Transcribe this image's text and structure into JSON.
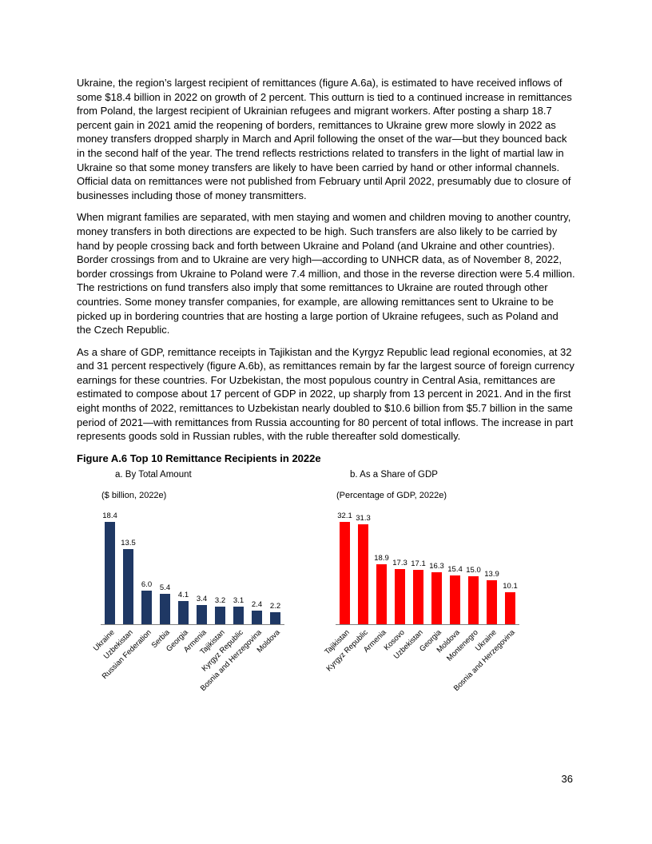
{
  "page_number": "36",
  "paragraphs": [
    "Ukraine, the region’s largest recipient of remittances (figure A.6a), is estimated to have received inflows of some $18.4 billion in 2022 on growth of 2 percent. This outturn is tied to a continued increase in remittances from Poland, the largest recipient of Ukrainian refugees and migrant workers. After posting a sharp 18.7 percent gain in 2021 amid the reopening of borders, remittances to Ukraine grew more slowly in 2022 as money transfers dropped sharply in March and April following the onset of the war—but they bounced back in the second half of the year. The trend reflects restrictions related to transfers in the light of martial law in Ukraine so that some money transfers are likely to have been carried by hand or other informal channels. Official data on remittances were not published from February until April 2022, presumably due to closure of businesses including those of money transmitters.",
    "When migrant families are separated, with men staying and women and children moving to another country, money transfers in both directions are expected to be high. Such transfers are also likely to be carried by hand by people crossing back and forth between Ukraine and Poland (and Ukraine and other countries). Border crossings from and to Ukraine are very high—according to UNHCR data, as of November 8, 2022, border crossings from Ukraine to Poland were 7.4 million, and those in the reverse direction were 5.4 million. The restrictions on fund transfers also imply that some remittances to Ukraine are routed through other countries. Some money transfer companies, for example, are allowing remittances sent to Ukraine to be picked up in bordering countries that are hosting a large portion of Ukraine refugees, such as Poland and the Czech Republic.",
    "As a share of GDP, remittance receipts in Tajikistan and the Kyrgyz Republic lead regional economies, at 32 and 31 percent respectively (figure A.6b), as remittances remain by far the largest source of foreign currency earnings for these countries. For Uzbekistan, the most populous country in Central Asia, remittances are estimated to compose about 17 percent of GDP in 2022, up sharply from 13 percent in 2021. And in the first eight months of 2022, remittances to Uzbekistan nearly doubled to $10.6 billion from $5.7 billion in the same period of 2021—with remittances from Russia accounting for 80 percent of total inflows. The increase in part represents goods sold in Russian rubles, with the ruble thereafter sold domestically."
  ],
  "figure": {
    "title": "Figure A.6 Top 10 Remittance Recipients in 2022e"
  },
  "chart_data": [
    {
      "type": "bar",
      "title": "a. By Total Amount",
      "units_label": "($ billion, 2022e)",
      "categories": [
        "Ukraine",
        "Uzbekistan",
        "Russian Federation",
        "Serbia",
        "Georgia",
        "Armenia",
        "Tajikistan",
        "Kyrgyz Republic",
        "Bosnia and Herzegovina",
        "Moldova"
      ],
      "values": [
        18.4,
        13.5,
        6.0,
        5.4,
        4.1,
        3.4,
        3.2,
        3.1,
        2.4,
        2.2
      ],
      "bar_color": "#1f3864",
      "ylim": [
        0,
        20
      ],
      "data_labels": true,
      "legend_position": "none",
      "grid": false
    },
    {
      "type": "bar",
      "title": "b. As a Share of GDP",
      "units_label": "(Percentage of GDP, 2022e)",
      "categories": [
        "Tajikistan",
        "Kyrgyz Republic",
        "Armenia",
        "Kosovo",
        "Uzbekistan",
        "Georgia",
        "Moldova",
        "Montenegro",
        "Ukraine",
        "Bosnia and Herzegovina"
      ],
      "values": [
        32.1,
        31.3,
        18.9,
        17.3,
        17.1,
        16.3,
        15.4,
        15.0,
        13.9,
        10.1
      ],
      "bar_color": "#ff0000",
      "ylim": [
        0,
        35
      ],
      "data_labels": true,
      "legend_position": "none",
      "grid": false
    }
  ]
}
